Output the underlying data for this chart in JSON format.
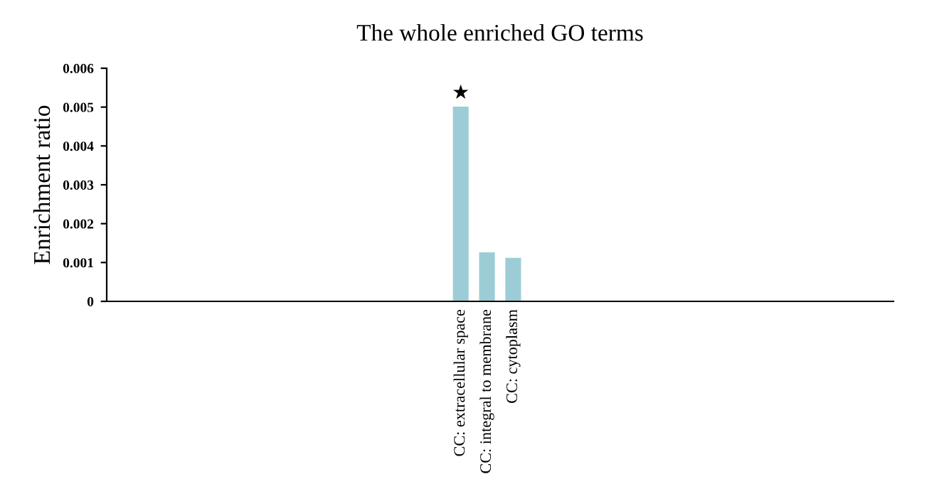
{
  "chart_data": {
    "type": "bar",
    "title": "The whole enriched GO terms",
    "ylabel": "Enrichment ratio",
    "categories": [
      null,
      null,
      null,
      null,
      null,
      null,
      null,
      null,
      null,
      null,
      null,
      null,
      null,
      "CC: extracellular space",
      "CC: integral to membrane",
      "CC: cytoplasm",
      null,
      null,
      null,
      null,
      null,
      null,
      null,
      null,
      null,
      null,
      null,
      null,
      null,
      null
    ],
    "values": [
      null,
      null,
      null,
      null,
      null,
      null,
      null,
      null,
      null,
      null,
      null,
      null,
      null,
      0.00501,
      0.00126,
      0.00112,
      null,
      null,
      null,
      null,
      null,
      null,
      null,
      null,
      null,
      null,
      null,
      null,
      null,
      null
    ],
    "color": "#9ccdd6",
    "ylim": [
      0,
      0.006
    ],
    "yticks": [
      0,
      0.001,
      0.002,
      0.003,
      0.004,
      0.005,
      0.006
    ],
    "grid": false,
    "legend": false,
    "annotations": [
      {
        "text": "★",
        "x": "CC: extracellular space",
        "y": 0.00501
      }
    ]
  }
}
